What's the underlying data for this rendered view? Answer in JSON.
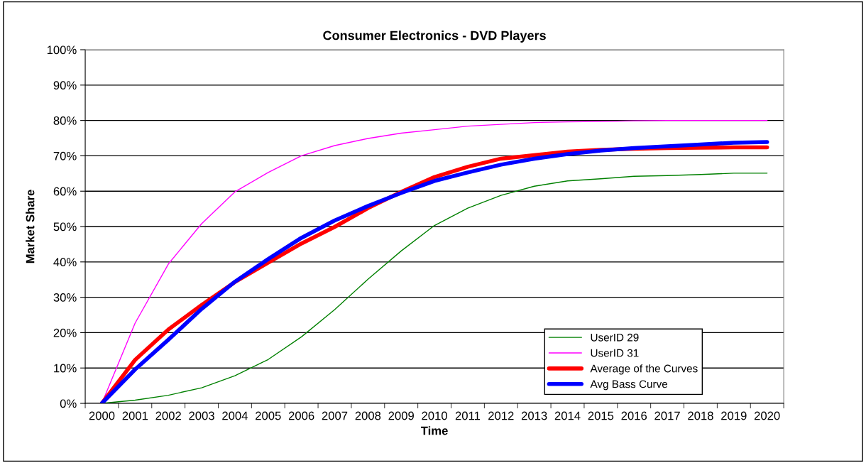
{
  "chart_data": {
    "type": "line",
    "title": "Consumer Electronics - DVD Players",
    "xlabel": "Time",
    "ylabel": "Market Share",
    "categories": [
      "2000",
      "2001",
      "2002",
      "2003",
      "2004",
      "2005",
      "2006",
      "2007",
      "2008",
      "2009",
      "2010",
      "2011",
      "2012",
      "2013",
      "2014",
      "2015",
      "2016",
      "2017",
      "2018",
      "2019",
      "2020"
    ],
    "series": [
      {
        "name": "UserID 29",
        "color": "#008000",
        "values": [
          0,
          0.9,
          2.3,
          4.4,
          7.8,
          12.4,
          18.8,
          26.5,
          35.1,
          43.1,
          50.3,
          55.2,
          58.8,
          61.4,
          62.9,
          63.5,
          64.2,
          64.4,
          64.7,
          65.1,
          65.1
        ]
      },
      {
        "name": "UserID 31",
        "color": "#ff00ff",
        "values": [
          0,
          22.7,
          39.4,
          50.8,
          59.8,
          65.3,
          70.0,
          72.9,
          74.9,
          76.4,
          77.4,
          78.4,
          78.9,
          79.4,
          79.6,
          79.7,
          79.9,
          80,
          80,
          80,
          80
        ]
      },
      {
        "name": "Average of the Curves",
        "color": "#ff0000",
        "values": [
          0,
          12.3,
          20.9,
          27.8,
          34.3,
          39.8,
          45.2,
          49.9,
          55.2,
          59.8,
          64.0,
          66.9,
          69.2,
          70.2,
          71.2,
          71.7,
          72.0,
          72.2,
          72.3,
          72.4,
          72.4
        ]
      },
      {
        "name": "Avg Bass Curve",
        "color": "#0000ff",
        "values": [
          0,
          9.6,
          18.0,
          26.7,
          34.4,
          40.8,
          46.8,
          51.7,
          55.8,
          59.5,
          62.9,
          65.3,
          67.5,
          69.2,
          70.5,
          71.5,
          72.2,
          72.7,
          73.2,
          73.7,
          73.9
        ]
      }
    ],
    "ylim": [
      0,
      100
    ],
    "yticks": [
      {
        "value": 0,
        "label": "0%"
      },
      {
        "value": 10,
        "label": "10%"
      },
      {
        "value": 20,
        "label": "20%"
      },
      {
        "value": 30,
        "label": "30%"
      },
      {
        "value": 40,
        "label": "40%"
      },
      {
        "value": 50,
        "label": "50%"
      },
      {
        "value": 60,
        "label": "60%"
      },
      {
        "value": 70,
        "label": "70%"
      },
      {
        "value": 80,
        "label": "80%"
      },
      {
        "value": 90,
        "label": "90%"
      },
      {
        "value": 100,
        "label": "100%"
      }
    ],
    "grid": "y",
    "legend": "bottom right",
    "marker": "none",
    "line_style": "solid"
  }
}
